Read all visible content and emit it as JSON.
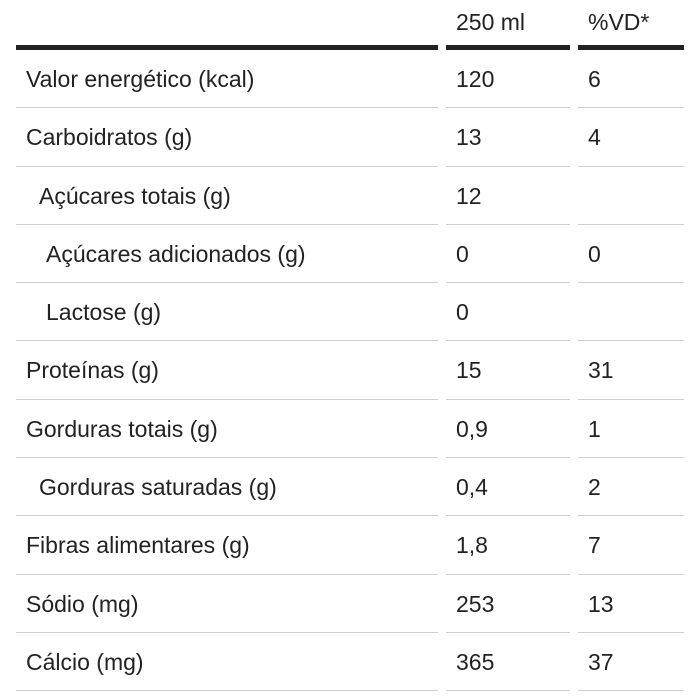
{
  "header": {
    "col_nutrient": "",
    "col_portion": "250 ml",
    "col_dv": "%VD*"
  },
  "rows": [
    {
      "label": "Valor energético (kcal)",
      "portion": "120",
      "dv": "6",
      "indent": 0
    },
    {
      "label": "Carboidratos (g)",
      "portion": "13",
      "dv": "4",
      "indent": 0
    },
    {
      "label": "Açúcares totais (g)",
      "portion": "12",
      "dv": "",
      "indent": 1
    },
    {
      "label": "Açúcares adicionados (g)",
      "portion": "0",
      "dv": "0",
      "indent": 2
    },
    {
      "label": "Lactose (g)",
      "portion": "0",
      "dv": "",
      "indent": 2
    },
    {
      "label": "Proteínas (g)",
      "portion": "15",
      "dv": "31",
      "indent": 0
    },
    {
      "label": "Gorduras totais (g)",
      "portion": "0,9",
      "dv": "1",
      "indent": 0
    },
    {
      "label": "Gorduras saturadas (g)",
      "portion": "0,4",
      "dv": "2",
      "indent": 1
    },
    {
      "label": "Fibras alimentares (g)",
      "portion": "1,8",
      "dv": "7",
      "indent": 0
    },
    {
      "label": "Sódio (mg)",
      "portion": "253",
      "dv": "13",
      "indent": 0
    },
    {
      "label": "Cálcio (mg)",
      "portion": "365",
      "dv": "37",
      "indent": 0
    }
  ]
}
